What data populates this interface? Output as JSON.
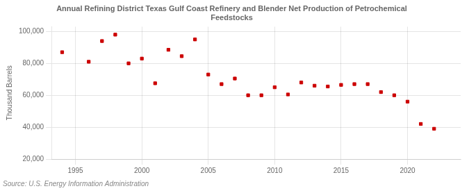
{
  "chart_data": {
    "type": "scatter",
    "title": "Annual Refining District Texas Gulf Coast Refinery and Blender Net Production of Petrochemical\nFeedstocks",
    "ylabel": "Thousand Barrels",
    "annotations": [
      "Source: U.S. Energy Information Administration"
    ],
    "x": [
      1994,
      1996,
      1997,
      1998,
      1999,
      2000,
      2001,
      2002,
      2003,
      2004,
      2005,
      2006,
      2007,
      2008,
      2009,
      2010,
      2011,
      2012,
      2013,
      2014,
      2015,
      2016,
      2017,
      2018,
      2019,
      2020,
      2021,
      2022,
      2023
    ],
    "values": [
      87000,
      81000,
      94000,
      98000,
      80000,
      83000,
      67500,
      88500,
      84500,
      95000,
      73000,
      67000,
      70500,
      60000,
      60000,
      65000,
      60500,
      68000,
      66000,
      65500,
      66500,
      67000,
      67000,
      62000,
      60000,
      56000,
      42000,
      39000,
      null
    ],
    "color": "#cc0000",
    "marker": "square",
    "xlim": [
      1993.2,
      2024.0
    ],
    "ylim": [
      20000,
      103000
    ],
    "xticks": [
      1995,
      2000,
      2005,
      2010,
      2015,
      2020
    ],
    "yticks": [
      {
        "value": 20000,
        "label": "20,000"
      },
      {
        "value": 40000,
        "label": "40,000"
      },
      {
        "value": 60000,
        "label": "60,000"
      },
      {
        "value": 80000,
        "label": "80,000"
      },
      {
        "value": 100000,
        "label": "100,000"
      }
    ],
    "grid": true
  }
}
